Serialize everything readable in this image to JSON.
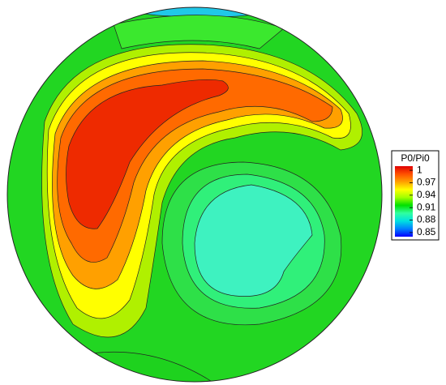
{
  "chart_data": {
    "type": "contour",
    "colorbar_title": "P0/Pi0",
    "clim": [
      0.84,
      1.01
    ],
    "cticks": [
      1,
      0.97,
      0.94,
      0.91,
      0.88,
      0.85
    ],
    "colormap": [
      "#0000ff",
      "#0080ff",
      "#00e0e0",
      "#30ffa0",
      "#00e000",
      "#a0ff00",
      "#ffff00",
      "#ffa000",
      "#ff5000",
      "#e00000"
    ]
  }
}
